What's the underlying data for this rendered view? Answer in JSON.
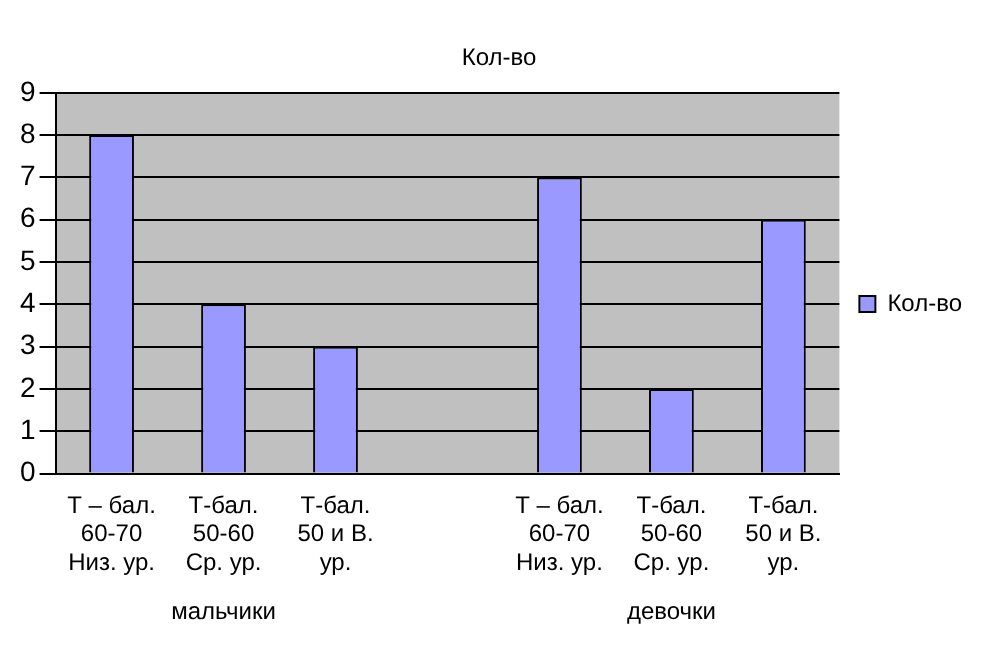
{
  "chart_data": {
    "type": "bar",
    "title": "Кол-во",
    "categories": [
      "Т – бал. 60-70 Низ. ур.",
      "Т-бал. 50-60 Ср. ур.",
      "Т-бал. 50 и В. ур.",
      null,
      "Т – бал. 60-70 Низ. ур.",
      "Т-бал. 50-60 Ср. ур.",
      "Т-бал. 50 и В. ур."
    ],
    "series": [
      {
        "name": "Кол-во",
        "color": "#9999ff",
        "values": [
          8,
          4,
          3,
          null,
          7,
          2,
          6
        ]
      }
    ],
    "annotations": [
      "мальчики",
      "девочки"
    ],
    "ylim": [
      0,
      9
    ],
    "yticks": [
      0,
      1,
      2,
      3,
      4,
      5,
      6,
      7,
      8,
      9
    ],
    "grid": "y",
    "legend": "right"
  }
}
